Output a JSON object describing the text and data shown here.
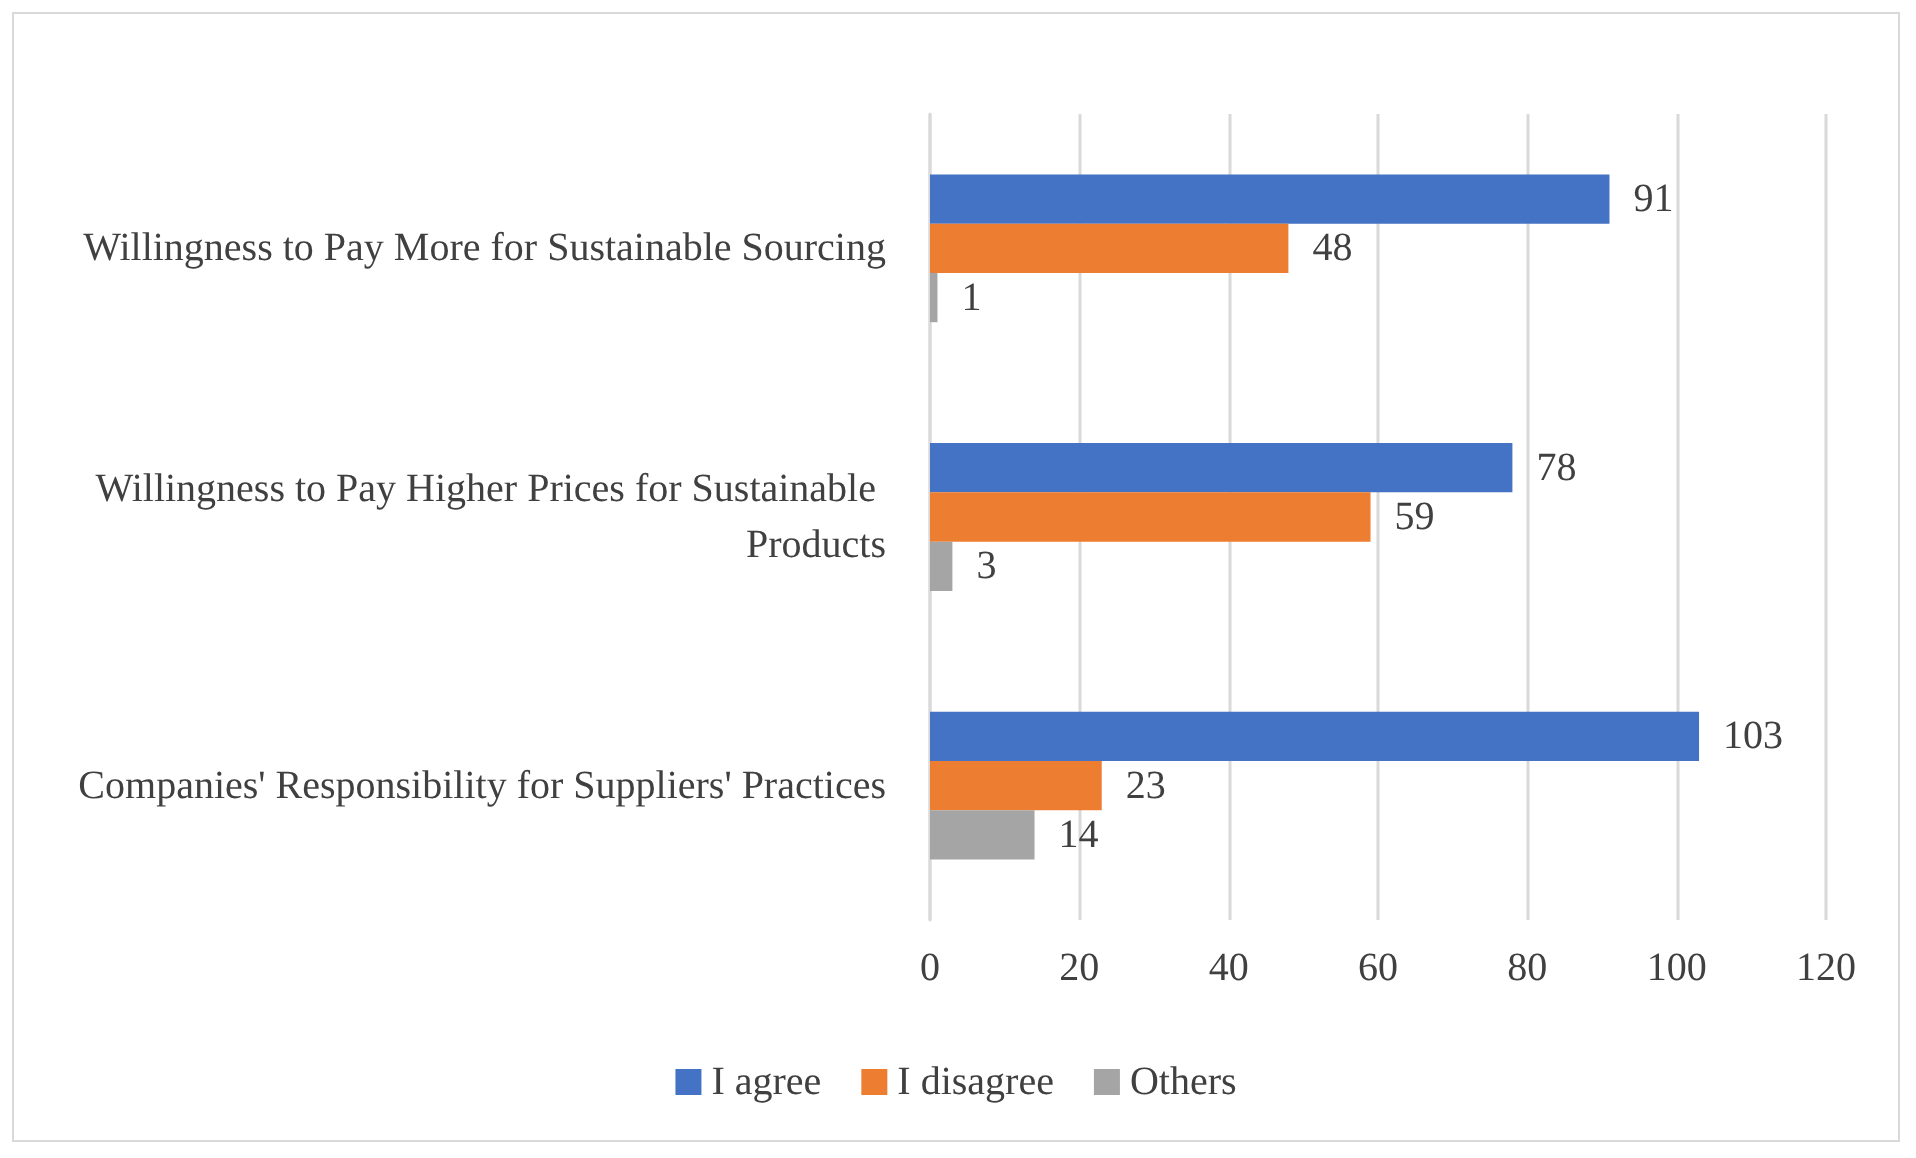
{
  "chart_data": {
    "type": "bar",
    "orientation": "horizontal",
    "categories": [
      "Willingness to Pay More for Sustainable Sourcing",
      "Willingness to Pay Higher Prices for Sustainable Products",
      "Companies' Responsibility for Suppliers' Practices"
    ],
    "series": [
      {
        "name": "I agree",
        "color": "#4472c4",
        "values": [
          91,
          78,
          103
        ]
      },
      {
        "name": "I disagree",
        "color": "#ed7d31",
        "values": [
          48,
          59,
          23
        ]
      },
      {
        "name": "Others",
        "color": "#a5a5a5",
        "values": [
          1,
          3,
          14
        ]
      }
    ],
    "xlim": [
      0,
      120
    ],
    "xticks": [
      0,
      20,
      40,
      60,
      80,
      100,
      120
    ],
    "grid": "x",
    "legend": "bottom",
    "data_labels": true
  }
}
